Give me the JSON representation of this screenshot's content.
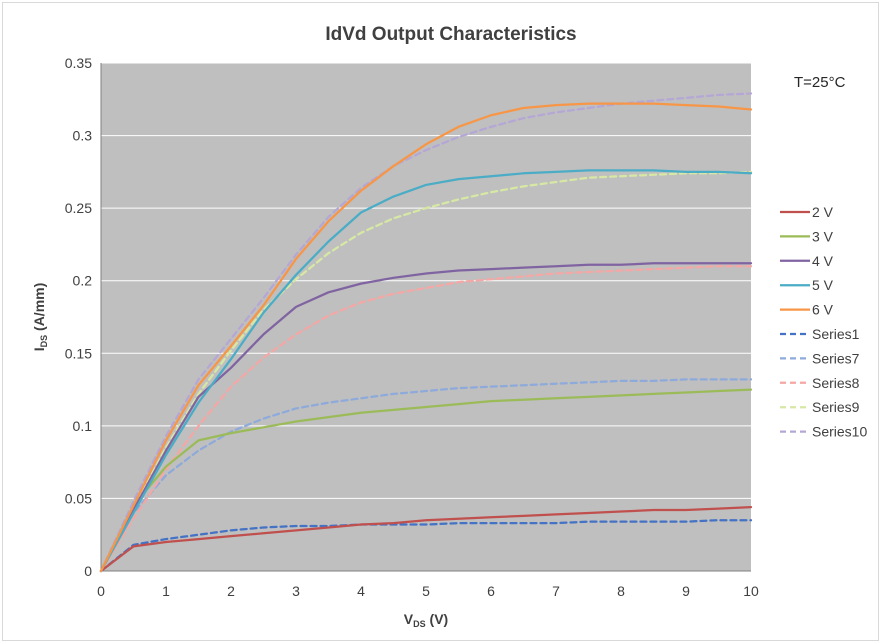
{
  "chart_data": {
    "type": "line",
    "title": "IdVd Output Characteristics",
    "xlabel_main": "V",
    "xlabel_sub": "DS",
    "xlabel_unit": " (V)",
    "ylabel_main": "I",
    "ylabel_sub": "DS",
    "ylabel_unit": " (A/mm)",
    "xlim": [
      0,
      10
    ],
    "ylim": [
      0,
      0.35
    ],
    "x_ticks": [
      "0",
      "1",
      "2",
      "3",
      "4",
      "5",
      "6",
      "7",
      "8",
      "9",
      "10"
    ],
    "y_ticks": [
      "0",
      "0.05",
      "0.1",
      "0.15",
      "0.2",
      "0.25",
      "0.3",
      "0.35"
    ],
    "grid": "horizontal",
    "plot_background": "#bfbfbf",
    "legend_position": "right",
    "annotation": "T=25°C",
    "x": [
      0,
      0.5,
      1,
      1.5,
      2,
      2.5,
      3,
      3.5,
      4,
      4.5,
      5,
      5.5,
      6,
      6.5,
      7,
      7.5,
      8,
      8.5,
      9,
      9.5,
      10
    ],
    "series": [
      {
        "name": "2 V",
        "color": "#c0504d",
        "dash": false,
        "values": [
          0,
          0.017,
          0.02,
          0.022,
          0.024,
          0.026,
          0.028,
          0.03,
          0.032,
          0.033,
          0.035,
          0.036,
          0.037,
          0.038,
          0.039,
          0.04,
          0.041,
          0.042,
          0.042,
          0.043,
          0.044
        ]
      },
      {
        "name": "3 V",
        "color": "#9bbb59",
        "dash": false,
        "values": [
          0,
          0.045,
          0.072,
          0.09,
          0.095,
          0.099,
          0.103,
          0.106,
          0.109,
          0.111,
          0.113,
          0.115,
          0.117,
          0.118,
          0.119,
          0.12,
          0.121,
          0.122,
          0.123,
          0.124,
          0.125
        ]
      },
      {
        "name": "4 V",
        "color": "#8064a2",
        "dash": false,
        "values": [
          0,
          0.042,
          0.083,
          0.12,
          0.14,
          0.163,
          0.182,
          0.192,
          0.198,
          0.202,
          0.205,
          0.207,
          0.208,
          0.209,
          0.21,
          0.211,
          0.211,
          0.212,
          0.212,
          0.212,
          0.212
        ]
      },
      {
        "name": "5 V",
        "color": "#4bacc6",
        "dash": false,
        "values": [
          0,
          0.04,
          0.08,
          0.116,
          0.146,
          0.178,
          0.204,
          0.227,
          0.247,
          0.258,
          0.266,
          0.27,
          0.272,
          0.274,
          0.275,
          0.276,
          0.276,
          0.276,
          0.275,
          0.275,
          0.274
        ]
      },
      {
        "name": "6 V",
        "color": "#f79646",
        "dash": false,
        "values": [
          0,
          0.045,
          0.09,
          0.128,
          0.155,
          0.183,
          0.215,
          0.241,
          0.262,
          0.279,
          0.294,
          0.306,
          0.314,
          0.319,
          0.321,
          0.322,
          0.322,
          0.322,
          0.321,
          0.32,
          0.318
        ]
      },
      {
        "name": "Series1",
        "color": "#4472c4",
        "dash": true,
        "values": [
          0,
          0.018,
          0.022,
          0.025,
          0.028,
          0.03,
          0.031,
          0.031,
          0.032,
          0.032,
          0.032,
          0.033,
          0.033,
          0.033,
          0.033,
          0.034,
          0.034,
          0.034,
          0.034,
          0.035,
          0.035
        ]
      },
      {
        "name": "Series7",
        "color": "#8eaadb",
        "dash": true,
        "values": [
          0,
          0.04,
          0.066,
          0.083,
          0.096,
          0.105,
          0.112,
          0.116,
          0.119,
          0.122,
          0.124,
          0.126,
          0.127,
          0.128,
          0.129,
          0.13,
          0.131,
          0.131,
          0.132,
          0.132,
          0.132
        ]
      },
      {
        "name": "Series8",
        "color": "#f4a7a4",
        "dash": true,
        "values": [
          0,
          0.036,
          0.07,
          0.1,
          0.127,
          0.147,
          0.163,
          0.176,
          0.185,
          0.191,
          0.195,
          0.199,
          0.201,
          0.203,
          0.205,
          0.206,
          0.207,
          0.208,
          0.209,
          0.21,
          0.21
        ]
      },
      {
        "name": "Series9",
        "color": "#d6e8a3",
        "dash": true,
        "values": [
          0,
          0.043,
          0.085,
          0.122,
          0.152,
          0.18,
          0.201,
          0.219,
          0.233,
          0.243,
          0.25,
          0.256,
          0.261,
          0.265,
          0.268,
          0.271,
          0.272,
          0.273,
          0.274,
          0.274,
          0.275
        ]
      },
      {
        "name": "Series10",
        "color": "#b4a7d6",
        "dash": true,
        "values": [
          0,
          0.048,
          0.093,
          0.132,
          0.16,
          0.188,
          0.218,
          0.244,
          0.264,
          0.279,
          0.29,
          0.299,
          0.306,
          0.312,
          0.316,
          0.319,
          0.322,
          0.324,
          0.326,
          0.328,
          0.329
        ]
      }
    ]
  }
}
